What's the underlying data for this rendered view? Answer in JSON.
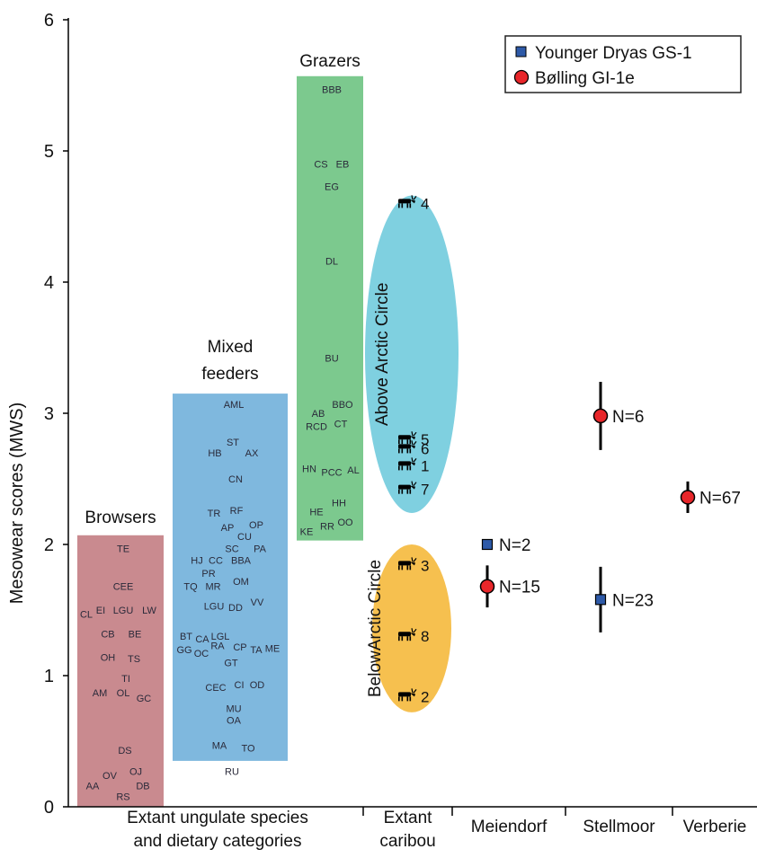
{
  "chart_data": {
    "type": "scatter",
    "ylabel": "Mesowear scores (MWS)",
    "ylim": [
      0,
      6
    ],
    "y_ticks": [
      0,
      1,
      2,
      3,
      4,
      5,
      6
    ],
    "x_groups": [
      {
        "key": "extant",
        "label": [
          "Extant ungulate species",
          "and dietary categories"
        ]
      },
      {
        "key": "caribou",
        "label": [
          "Extant",
          "caribou"
        ]
      },
      {
        "key": "meiendorf",
        "label": [
          "Meiendorf"
        ]
      },
      {
        "key": "stellmoor",
        "label": [
          "Stellmoor"
        ]
      },
      {
        "key": "verberie",
        "label": [
          "Verberie"
        ]
      }
    ],
    "legend": {
      "position": "top-right",
      "entries": [
        {
          "label": "Younger Dryas GS-1",
          "marker": "square",
          "color": "#2e5aa8"
        },
        {
          "label": "Bølling GI-1e",
          "marker": "circle",
          "color": "#e8262a"
        }
      ]
    },
    "categories": [
      {
        "name": "Browsers",
        "color": "#c98a8f",
        "range": [
          0,
          2.07
        ],
        "species": [
          {
            "code": "TE",
            "y": 1.97
          },
          {
            "code": "CEE",
            "y": 1.68
          },
          {
            "code": "CL",
            "y": 1.47
          },
          {
            "code": "EI",
            "y": 1.5
          },
          {
            "code": "LGU",
            "y": 1.5
          },
          {
            "code": "LW",
            "y": 1.5
          },
          {
            "code": "CB",
            "y": 1.32
          },
          {
            "code": "BE",
            "y": 1.32
          },
          {
            "code": "OH",
            "y": 1.14
          },
          {
            "code": "TS",
            "y": 1.13
          },
          {
            "code": "TI",
            "y": 0.98
          },
          {
            "code": "AM",
            "y": 0.87
          },
          {
            "code": "OL",
            "y": 0.87
          },
          {
            "code": "GC",
            "y": 0.83
          },
          {
            "code": "DS",
            "y": 0.43
          },
          {
            "code": "OJ",
            "y": 0.27
          },
          {
            "code": "OV",
            "y": 0.24
          },
          {
            "code": "AA",
            "y": 0.16
          },
          {
            "code": "DB",
            "y": 0.16
          },
          {
            "code": "RS",
            "y": 0.08
          }
        ]
      },
      {
        "name": "Mixed feeders",
        "color": "#7fb8de",
        "range": [
          0.35,
          3.15
        ],
        "species": [
          {
            "code": "AML",
            "y": 3.07
          },
          {
            "code": "ST",
            "y": 2.78
          },
          {
            "code": "HB",
            "y": 2.7
          },
          {
            "code": "AX",
            "y": 2.7
          },
          {
            "code": "CN",
            "y": 2.5
          },
          {
            "code": "TR",
            "y": 2.24
          },
          {
            "code": "RF",
            "y": 2.26
          },
          {
            "code": "OP",
            "y": 2.15
          },
          {
            "code": "AP",
            "y": 2.13
          },
          {
            "code": "CU",
            "y": 2.06
          },
          {
            "code": "SC",
            "y": 1.97
          },
          {
            "code": "PA",
            "y": 1.97
          },
          {
            "code": "HJ",
            "y": 1.88
          },
          {
            "code": "CC",
            "y": 1.88
          },
          {
            "code": "BBA",
            "y": 1.88
          },
          {
            "code": "PR",
            "y": 1.78
          },
          {
            "code": "TQ",
            "y": 1.68
          },
          {
            "code": "MR",
            "y": 1.68
          },
          {
            "code": "OM",
            "y": 1.72
          },
          {
            "code": "VV",
            "y": 1.56
          },
          {
            "code": "LGU",
            "y": 1.53
          },
          {
            "code": "DD",
            "y": 1.52
          },
          {
            "code": "BT",
            "y": 1.3
          },
          {
            "code": "CA",
            "y": 1.28
          },
          {
            "code": "LGL",
            "y": 1.3
          },
          {
            "code": "GG",
            "y": 1.2
          },
          {
            "code": "OC",
            "y": 1.17
          },
          {
            "code": "RA",
            "y": 1.23
          },
          {
            "code": "CP",
            "y": 1.22
          },
          {
            "code": "TA",
            "y": 1.2
          },
          {
            "code": "ME",
            "y": 1.21
          },
          {
            "code": "GT",
            "y": 1.1
          },
          {
            "code": "CEC",
            "y": 0.91
          },
          {
            "code": "CI",
            "y": 0.93
          },
          {
            "code": "OD",
            "y": 0.93
          },
          {
            "code": "MU",
            "y": 0.75
          },
          {
            "code": "OA",
            "y": 0.66
          },
          {
            "code": "MA",
            "y": 0.47
          },
          {
            "code": "TO",
            "y": 0.45
          },
          {
            "code": "RU",
            "y": 0.27
          }
        ]
      },
      {
        "name": "Grazers",
        "color": "#7cc98e",
        "range": [
          2.03,
          5.57
        ],
        "species": [
          {
            "code": "BBB",
            "y": 5.47
          },
          {
            "code": "CS",
            "y": 4.9
          },
          {
            "code": "EB",
            "y": 4.9
          },
          {
            "code": "EG",
            "y": 4.73
          },
          {
            "code": "DL",
            "y": 4.16
          },
          {
            "code": "BU",
            "y": 3.42
          },
          {
            "code": "BBO",
            "y": 3.07
          },
          {
            "code": "AB",
            "y": 3.0
          },
          {
            "code": "RCD",
            "y": 2.9
          },
          {
            "code": "CT",
            "y": 2.92
          },
          {
            "code": "HN",
            "y": 2.58
          },
          {
            "code": "PCC",
            "y": 2.55
          },
          {
            "code": "AL",
            "y": 2.57
          },
          {
            "code": "HH",
            "y": 2.32
          },
          {
            "code": "HE",
            "y": 2.25
          },
          {
            "code": "OO",
            "y": 2.17
          },
          {
            "code": "RR",
            "y": 2.14
          },
          {
            "code": "KE",
            "y": 2.1
          }
        ]
      }
    ],
    "caribou_groups": [
      {
        "label": "Above Arctic Circle",
        "color": "#7fd0e0",
        "range": [
          2.24,
          4.66
        ]
      },
      {
        "label": "BelowArctic Circle",
        "color": "#f6c04f",
        "range": [
          0.72,
          2.0
        ]
      }
    ],
    "caribou_points": [
      {
        "id": "4",
        "y": 4.6
      },
      {
        "id": "5",
        "y": 2.8
      },
      {
        "id": "6",
        "y": 2.73
      },
      {
        "id": "1",
        "y": 2.6
      },
      {
        "id": "7",
        "y": 2.42
      },
      {
        "id": "3",
        "y": 1.84
      },
      {
        "id": "8",
        "y": 1.3
      },
      {
        "id": "2",
        "y": 0.84
      }
    ],
    "archaeological": [
      {
        "site": "meiendorf",
        "series": "Younger Dryas GS-1",
        "y": 2.0,
        "err": 0,
        "label": "N=2"
      },
      {
        "site": "meiendorf",
        "series": "Bølling GI-1e",
        "y": 1.68,
        "err": 0.16,
        "label": "N=15"
      },
      {
        "site": "stellmoor",
        "series": "Bølling GI-1e",
        "y": 2.98,
        "err": 0.26,
        "label": "N=6"
      },
      {
        "site": "stellmoor",
        "series": "Younger Dryas GS-1",
        "y": 1.58,
        "err": 0.25,
        "label": "N=23"
      },
      {
        "site": "verberie",
        "series": "Bølling GI-1e",
        "y": 2.36,
        "err": 0.12,
        "label": "N=67"
      }
    ]
  }
}
